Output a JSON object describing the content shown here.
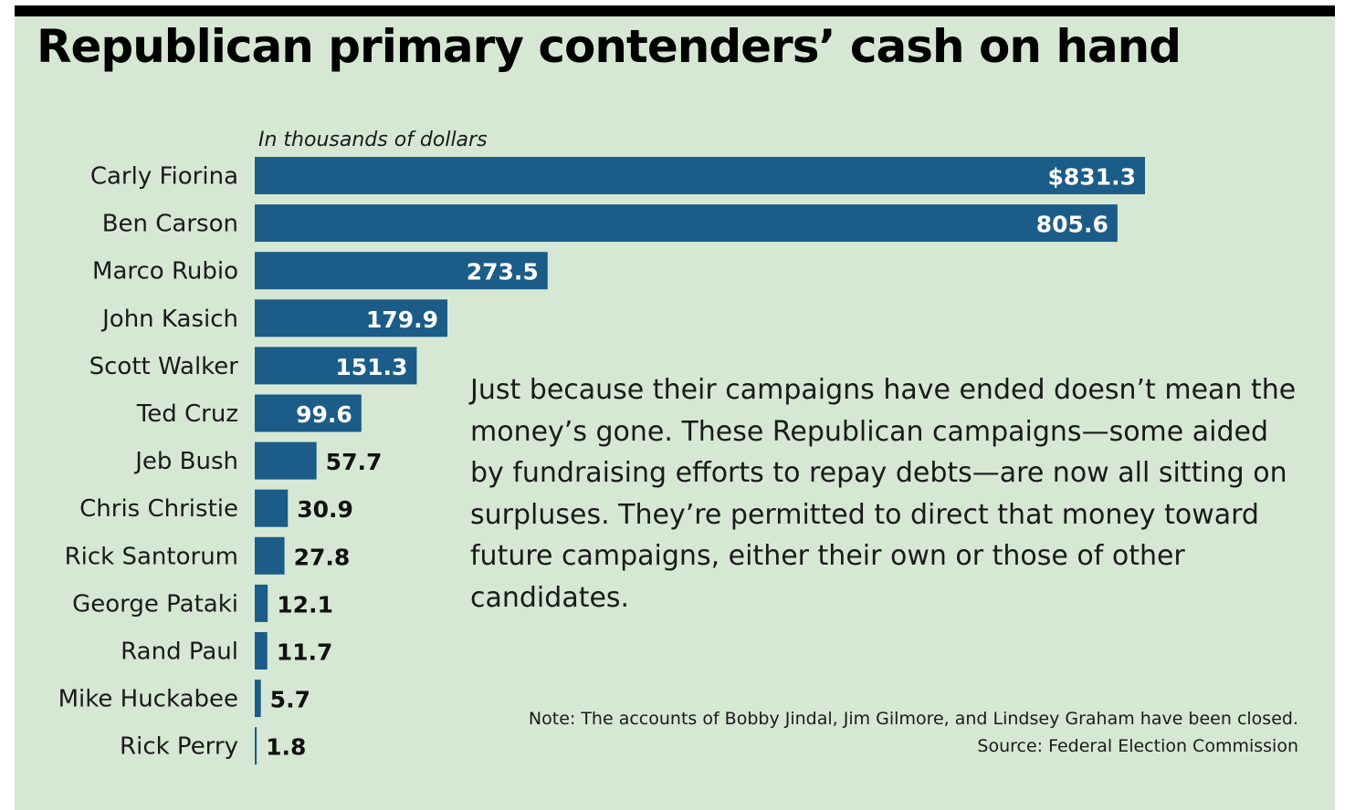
{
  "chart_data": {
    "type": "bar",
    "orientation": "horizontal",
    "title": "Republican primary contenders’ cash on hand",
    "subtitle": "In thousands of dollars",
    "categories": [
      "Carly Fiorina",
      "Ben Carson",
      "Marco Rubio",
      "John Kasich",
      "Scott Walker",
      "Ted Cruz",
      "Jeb Bush",
      "Chris Christie",
      "Rick Santorum",
      "George Pataki",
      "Rand Paul",
      "Mike Huckabee",
      "Rick Perry"
    ],
    "values": [
      831.3,
      805.6,
      273.5,
      179.9,
      151.3,
      99.6,
      57.7,
      30.9,
      27.8,
      12.1,
      11.7,
      5.7,
      1.8
    ],
    "value_labels": [
      "$831.3",
      "805.6",
      "273.5",
      "179.9",
      "151.3",
      "99.6",
      "57.7",
      "30.9",
      "27.8",
      "12.1",
      "11.7",
      "5.7",
      "1.8"
    ],
    "xlim": [
      0,
      831.3
    ],
    "grid": false,
    "legend": "none",
    "colors": {
      "bar": "#1b5c88",
      "background": "#d6e8d4",
      "top_rule": "#000000",
      "label_inside": "#ffffff",
      "label_outside": "#111111"
    }
  },
  "description": "Just because their campaigns have ended doesn’t mean the money’s gone. These Republican campaigns—some aided by fundraising efforts to repay debts—are now all sitting on surpluses. They’re permitted to direct that money toward future campaigns, either their own or those of other candidates.",
  "note": "Note: The accounts of Bobby Jindal, Jim Gilmore, and Lindsey Graham have been closed.",
  "source": "Source: Federal Election Commission"
}
